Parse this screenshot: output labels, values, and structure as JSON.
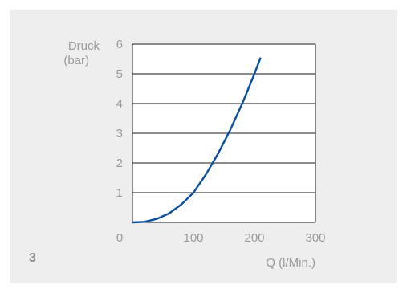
{
  "figure_number": "3",
  "colors": {
    "background": "#eeeeee",
    "plot_bg": "#ffffff",
    "curve": "#0a4f9e",
    "grid": "#1a1a1a",
    "text": "#9a9a9a"
  },
  "chart_data": {
    "type": "line",
    "title": "",
    "ylabel_line1": "Druck",
    "ylabel_line2": "(bar)",
    "xlabel": "Q (l/Min.)",
    "xlim": [
      0,
      300
    ],
    "ylim": [
      0,
      6
    ],
    "x_ticks": [
      "0",
      "100",
      "200",
      "300"
    ],
    "y_ticks": [
      "1",
      "2",
      "3",
      "4",
      "5",
      "6"
    ],
    "grid": "horizontal",
    "series": [
      {
        "x": [
          0,
          20,
          40,
          60,
          80,
          100,
          120,
          140,
          160,
          180,
          200,
          210
        ],
        "y": [
          0,
          0.02,
          0.12,
          0.3,
          0.6,
          1.0,
          1.6,
          2.3,
          3.1,
          4.0,
          5.0,
          5.55
        ]
      }
    ]
  }
}
